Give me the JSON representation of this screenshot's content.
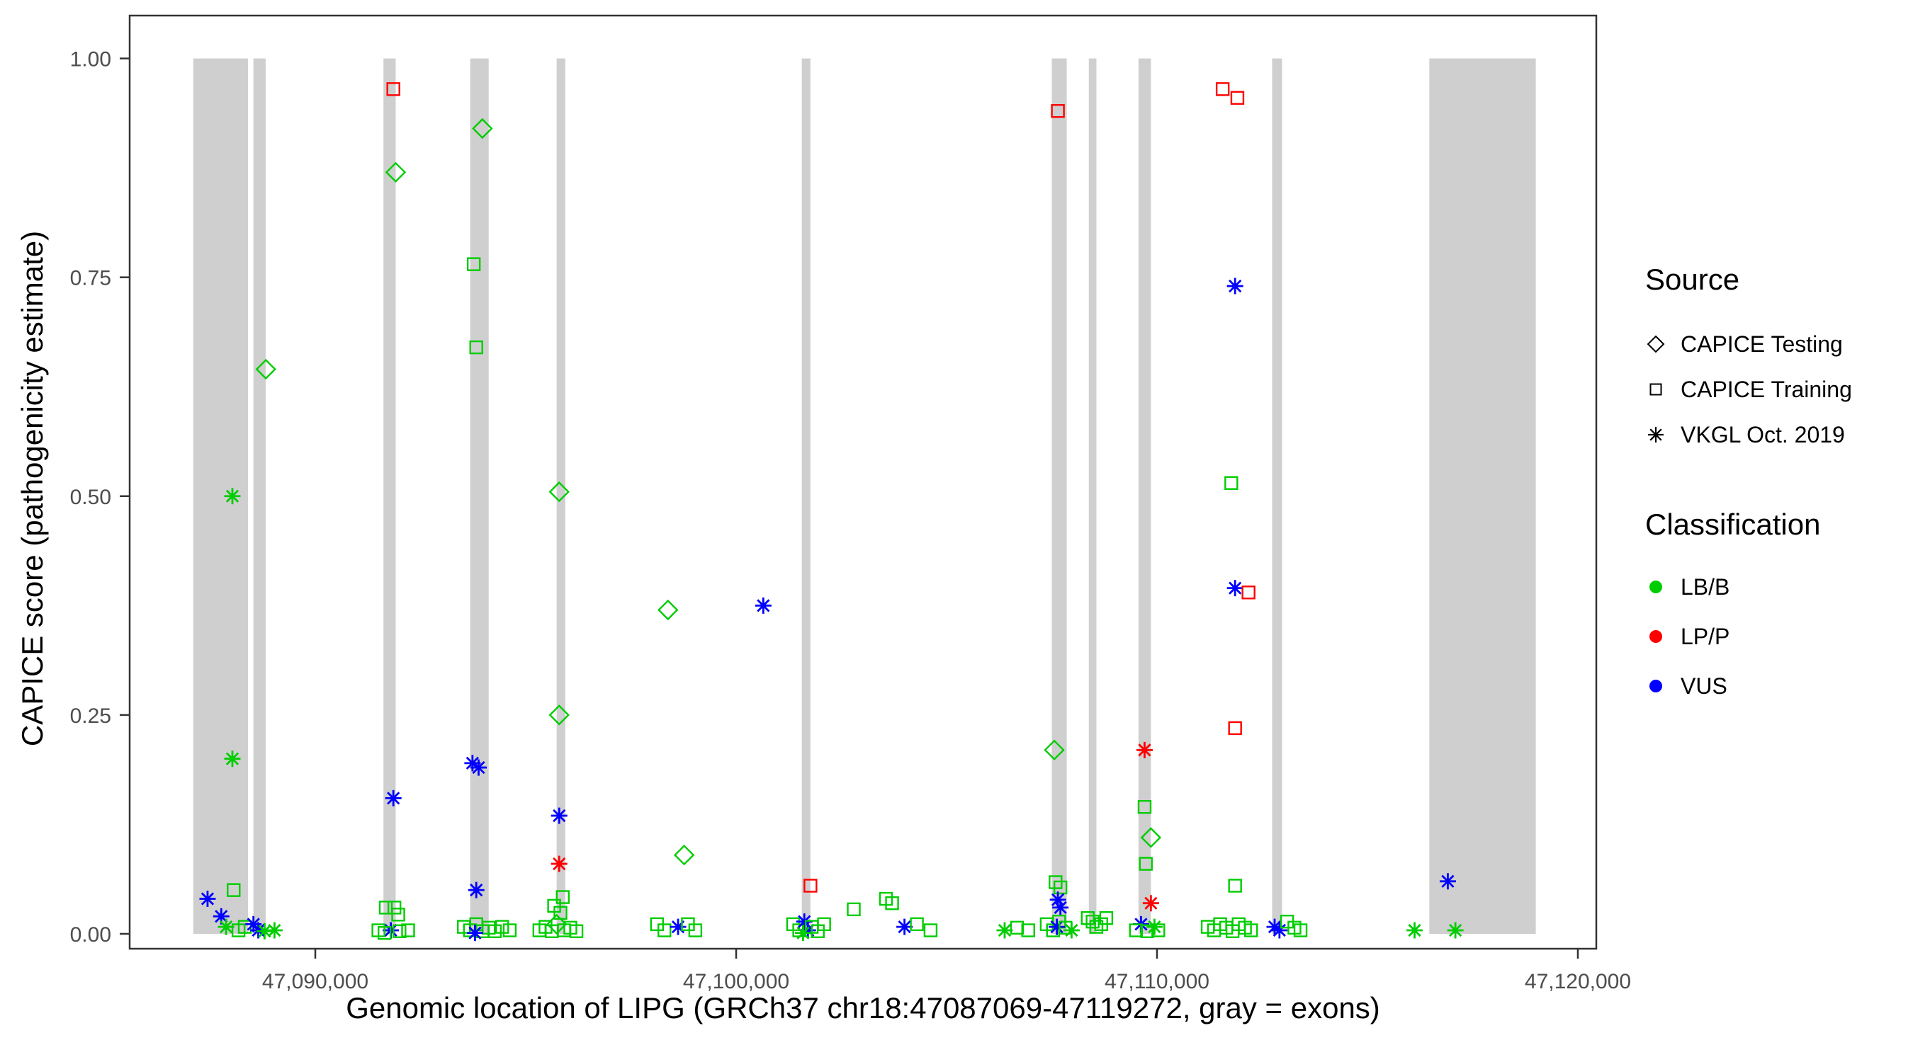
{
  "chart_data": {
    "type": "scatter",
    "title": "",
    "xlabel": "Genomic location of LIPG (GRCh37 chr18:47087069-47119272, gray = exons)",
    "ylabel": "CAPICE score (pathogenicity estimate)",
    "x_domain": [
      47085589,
      47120438
    ],
    "y_domain": [
      -0.017,
      1.049
    ],
    "x_ticks": [
      {
        "value": 47090000,
        "label": "47,090,000"
      },
      {
        "value": 47100000,
        "label": "47,100,000"
      },
      {
        "value": 47110000,
        "label": "47,110,000"
      },
      {
        "value": 47120000,
        "label": "47,120,000"
      }
    ],
    "y_ticks": [
      {
        "value": 0.0,
        "label": "0.00"
      },
      {
        "value": 0.25,
        "label": "0.25"
      },
      {
        "value": 0.5,
        "label": "0.50"
      },
      {
        "value": 0.75,
        "label": "0.75"
      },
      {
        "value": 1.0,
        "label": "1.00"
      }
    ],
    "exons": [
      [
        47087100,
        47088400
      ],
      [
        47088530,
        47088820
      ],
      [
        47091620,
        47091910
      ],
      [
        47093680,
        47094120
      ],
      [
        47095735,
        47095940
      ],
      [
        47101560,
        47101765
      ],
      [
        47107500,
        47107855
      ],
      [
        47108380,
        47108560
      ],
      [
        47109560,
        47109855
      ],
      [
        47112735,
        47112970
      ],
      [
        47116470,
        47119000
      ]
    ],
    "colors": {
      "exon": "#CFCFCF",
      "classification": {
        "LB/B": "#00CD00",
        "LP/P": "#FF0000",
        "VUS": "#0000FF"
      }
    },
    "sources": {
      "testing": "CAPICE Testing (open diamond)",
      "training": "CAPICE Training (open square)",
      "vkgl": "VKGL Oct. 2019 (asterisk)"
    },
    "point_format": [
      "genomic_position",
      "capice_score",
      "source",
      "classification"
    ],
    "points": [
      [
        47087440,
        0.04,
        "vkgl",
        "VUS"
      ],
      [
        47087765,
        0.02,
        "vkgl",
        "VUS"
      ],
      [
        47088060,
        0.05,
        "training",
        "LB/B"
      ],
      [
        47088030,
        0.5,
        "vkgl",
        "LB/B"
      ],
      [
        47088030,
        0.2,
        "vkgl",
        "LB/B"
      ],
      [
        47087880,
        0.008,
        "vkgl",
        "LB/B"
      ],
      [
        47088175,
        0.004,
        "training",
        "LB/B"
      ],
      [
        47088325,
        0.008,
        "training",
        "LB/B"
      ],
      [
        47088530,
        0.011,
        "vkgl",
        "VUS"
      ],
      [
        47088645,
        0.004,
        "vkgl",
        "VUS"
      ],
      [
        47088795,
        0.003,
        "vkgl",
        "LB/B"
      ],
      [
        47089030,
        0.004,
        "vkgl",
        "LB/B"
      ],
      [
        47088825,
        0.645,
        "testing",
        "LB/B"
      ],
      [
        47091855,
        0.965,
        "training",
        "LP/P"
      ],
      [
        47091910,
        0.87,
        "testing",
        "LB/B"
      ],
      [
        47091855,
        0.155,
        "vkgl",
        "VUS"
      ],
      [
        47091675,
        0.03,
        "training",
        "LB/B"
      ],
      [
        47091880,
        0.03,
        "training",
        "LB/B"
      ],
      [
        47091970,
        0.022,
        "training",
        "LB/B"
      ],
      [
        47091795,
        0.004,
        "vkgl",
        "VUS"
      ],
      [
        47091500,
        0.004,
        "training",
        "LB/B"
      ],
      [
        47091645,
        0.001,
        "training",
        "LB/B"
      ],
      [
        47092000,
        0.003,
        "training",
        "LB/B"
      ],
      [
        47092205,
        0.004,
        "training",
        "LB/B"
      ],
      [
        47093970,
        0.92,
        "testing",
        "LB/B"
      ],
      [
        47093765,
        0.765,
        "training",
        "LB/B"
      ],
      [
        47093825,
        0.67,
        "training",
        "LB/B"
      ],
      [
        47093735,
        0.195,
        "vkgl",
        "VUS"
      ],
      [
        47093880,
        0.19,
        "vkgl",
        "VUS"
      ],
      [
        47093825,
        0.05,
        "vkgl",
        "VUS"
      ],
      [
        47093530,
        0.008,
        "training",
        "LB/B"
      ],
      [
        47093675,
        0.004,
        "training",
        "LB/B"
      ],
      [
        47093825,
        0.011,
        "training",
        "LB/B"
      ],
      [
        47093970,
        0.003,
        "training",
        "LB/B"
      ],
      [
        47094120,
        0.007,
        "training",
        "LB/B"
      ],
      [
        47094265,
        0.003,
        "training",
        "LB/B"
      ],
      [
        47093795,
        0.001,
        "vkgl",
        "VUS"
      ],
      [
        47094440,
        0.008,
        "training",
        "LB/B"
      ],
      [
        47094620,
        0.004,
        "training",
        "LB/B"
      ],
      [
        47095795,
        0.505,
        "testing",
        "LB/B"
      ],
      [
        47095795,
        0.25,
        "testing",
        "LB/B"
      ],
      [
        47095795,
        0.135,
        "vkgl",
        "VUS"
      ],
      [
        47095795,
        0.08,
        "vkgl",
        "LP/P"
      ],
      [
        47095675,
        0.032,
        "training",
        "LB/B"
      ],
      [
        47095825,
        0.024,
        "training",
        "LB/B"
      ],
      [
        47095880,
        0.042,
        "training",
        "LB/B"
      ],
      [
        47095325,
        0.004,
        "training",
        "LB/B"
      ],
      [
        47095470,
        0.008,
        "training",
        "LB/B"
      ],
      [
        47095620,
        0.003,
        "training",
        "LB/B"
      ],
      [
        47095735,
        0.011,
        "testing",
        "LB/B"
      ],
      [
        47095910,
        0.004,
        "training",
        "LB/B"
      ],
      [
        47096060,
        0.007,
        "training",
        "LB/B"
      ],
      [
        47096205,
        0.003,
        "training",
        "LB/B"
      ],
      [
        47098380,
        0.37,
        "testing",
        "LB/B"
      ],
      [
        47098765,
        0.09,
        "testing",
        "LB/B"
      ],
      [
        47098120,
        0.011,
        "training",
        "LB/B"
      ],
      [
        47098295,
        0.004,
        "training",
        "LB/B"
      ],
      [
        47098620,
        0.008,
        "vkgl",
        "VUS"
      ],
      [
        47098855,
        0.011,
        "training",
        "LB/B"
      ],
      [
        47099030,
        0.004,
        "training",
        "LB/B"
      ],
      [
        47100645,
        0.375,
        "vkgl",
        "VUS"
      ],
      [
        47101765,
        0.055,
        "training",
        "LP/P"
      ],
      [
        47101355,
        0.011,
        "training",
        "LB/B"
      ],
      [
        47101500,
        0.004,
        "training",
        "LB/B"
      ],
      [
        47101620,
        0.014,
        "vkgl",
        "VUS"
      ],
      [
        47101705,
        0.004,
        "vkgl",
        "VUS"
      ],
      [
        47101795,
        0.008,
        "training",
        "LB/B"
      ],
      [
        47101940,
        0.003,
        "training",
        "LB/B"
      ],
      [
        47101590,
        0.001,
        "vkgl",
        "LB/B"
      ],
      [
        47102090,
        0.011,
        "training",
        "LB/B"
      ],
      [
        47102795,
        0.028,
        "training",
        "LB/B"
      ],
      [
        47103560,
        0.04,
        "training",
        "LB/B"
      ],
      [
        47103705,
        0.035,
        "training",
        "LB/B"
      ],
      [
        47104000,
        0.008,
        "vkgl",
        "VUS"
      ],
      [
        47104295,
        0.011,
        "training",
        "LB/B"
      ],
      [
        47104620,
        0.004,
        "training",
        "LB/B"
      ],
      [
        47106380,
        0.004,
        "vkgl",
        "LB/B"
      ],
      [
        47106675,
        0.007,
        "training",
        "LB/B"
      ],
      [
        47106940,
        0.004,
        "training",
        "LB/B"
      ],
      [
        47107645,
        0.94,
        "training",
        "LP/P"
      ],
      [
        47107560,
        0.21,
        "testing",
        "LB/B"
      ],
      [
        47107590,
        0.059,
        "training",
        "LB/B"
      ],
      [
        47107705,
        0.053,
        "training",
        "LB/B"
      ],
      [
        47107645,
        0.039,
        "vkgl",
        "VUS"
      ],
      [
        47107705,
        0.03,
        "vkgl",
        "VUS"
      ],
      [
        47107380,
        0.011,
        "training",
        "LB/B"
      ],
      [
        47107530,
        0.004,
        "training",
        "LB/B"
      ],
      [
        47107675,
        0.014,
        "training",
        "LB/B"
      ],
      [
        47107620,
        0.008,
        "vkgl",
        "VUS"
      ],
      [
        47107970,
        0.004,
        "vkgl",
        "LB/B"
      ],
      [
        47107825,
        0.007,
        "training",
        "LB/B"
      ],
      [
        47108355,
        0.018,
        "training",
        "LB/B"
      ],
      [
        47108470,
        0.014,
        "training",
        "LB/B"
      ],
      [
        47108560,
        0.008,
        "training",
        "LB/B"
      ],
      [
        47108675,
        0.011,
        "training",
        "LB/B"
      ],
      [
        47108795,
        0.018,
        "training",
        "LB/B"
      ],
      [
        47109705,
        0.21,
        "vkgl",
        "LP/P"
      ],
      [
        47109705,
        0.145,
        "training",
        "LB/B"
      ],
      [
        47109855,
        0.11,
        "testing",
        "LB/B"
      ],
      [
        47109735,
        0.08,
        "training",
        "LB/B"
      ],
      [
        47109855,
        0.035,
        "vkgl",
        "LP/P"
      ],
      [
        47109620,
        0.011,
        "vkgl",
        "VUS"
      ],
      [
        47109940,
        0.008,
        "vkgl",
        "LB/B"
      ],
      [
        47109500,
        0.004,
        "training",
        "LB/B"
      ],
      [
        47109765,
        0.003,
        "training",
        "LB/B"
      ],
      [
        47110030,
        0.004,
        "training",
        "LB/B"
      ],
      [
        47111560,
        0.965,
        "training",
        "LP/P"
      ],
      [
        47111910,
        0.955,
        "training",
        "LP/P"
      ],
      [
        47111855,
        0.74,
        "vkgl",
        "VUS"
      ],
      [
        47111765,
        0.515,
        "training",
        "LB/B"
      ],
      [
        47111855,
        0.395,
        "vkgl",
        "VUS"
      ],
      [
        47112175,
        0.39,
        "training",
        "LP/P"
      ],
      [
        47111855,
        0.235,
        "training",
        "LP/P"
      ],
      [
        47111855,
        0.055,
        "training",
        "LB/B"
      ],
      [
        47111205,
        0.008,
        "training",
        "LB/B"
      ],
      [
        47111355,
        0.004,
        "training",
        "LB/B"
      ],
      [
        47111500,
        0.011,
        "training",
        "LB/B"
      ],
      [
        47111645,
        0.007,
        "training",
        "LB/B"
      ],
      [
        47111795,
        0.003,
        "training",
        "LB/B"
      ],
      [
        47111940,
        0.011,
        "training",
        "LB/B"
      ],
      [
        47112090,
        0.007,
        "training",
        "LB/B"
      ],
      [
        47112235,
        0.004,
        "training",
        "LB/B"
      ],
      [
        47112795,
        0.008,
        "vkgl",
        "VUS"
      ],
      [
        47112910,
        0.004,
        "vkgl",
        "VUS"
      ],
      [
        47113090,
        0.014,
        "training",
        "LB/B"
      ],
      [
        47113265,
        0.007,
        "training",
        "LB/B"
      ],
      [
        47113410,
        0.004,
        "training",
        "LB/B"
      ],
      [
        47116120,
        0.004,
        "vkgl",
        "LB/B"
      ],
      [
        47116910,
        0.06,
        "vkgl",
        "VUS"
      ],
      [
        47117090,
        0.004,
        "vkgl",
        "LB/B"
      ]
    ],
    "legend": {
      "source": {
        "title": "Source",
        "items": [
          {
            "label": "CAPICE Testing",
            "shape": "diamond"
          },
          {
            "label": "CAPICE Training",
            "shape": "square"
          },
          {
            "label": "VKGL Oct. 2019",
            "shape": "asterisk"
          }
        ]
      },
      "classification": {
        "title": "Classification",
        "items": [
          {
            "label": "LB/B",
            "color": "#00CD00"
          },
          {
            "label": "LP/P",
            "color": "#FF0000"
          },
          {
            "label": "VUS",
            "color": "#0000FF"
          }
        ]
      }
    }
  }
}
